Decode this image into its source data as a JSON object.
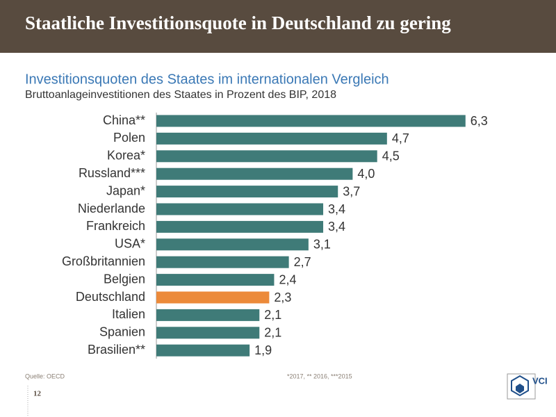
{
  "slide": {
    "title": "Staatliche Investitionsquote in Deutschland zu gering",
    "source": "Quelle: OECD",
    "footnote": "*2017, ** 2016, ***2015",
    "page": "12",
    "logo": "VCI"
  },
  "chart_data": {
    "type": "bar",
    "orientation": "horizontal",
    "title": "Investitionsquoten des Staates im internationalen Vergleich",
    "subtitle": "Bruttoanlageinvestitionen des Staates in Prozent des BIP, 2018",
    "categories": [
      "China**",
      "Polen",
      "Korea*",
      "Russland***",
      "Japan*",
      "Niederlande",
      "Frankreich",
      "USA*",
      "Großbritannien",
      "Belgien",
      "Deutschland",
      "Italien",
      "Spanien",
      "Brasilien**"
    ],
    "values": [
      6.3,
      4.7,
      4.5,
      4.0,
      3.7,
      3.4,
      3.4,
      3.1,
      2.7,
      2.4,
      2.3,
      2.1,
      2.1,
      1.9
    ],
    "value_labels": [
      "6,3",
      "4,7",
      "4,5",
      "4,0",
      "3,7",
      "3,4",
      "3,4",
      "3,1",
      "2,7",
      "2,4",
      "2,3",
      "2,1",
      "2,1",
      "1,9"
    ],
    "colors": [
      "#3f7b78",
      "#3f7b78",
      "#3f7b78",
      "#3f7b78",
      "#3f7b78",
      "#3f7b78",
      "#3f7b78",
      "#3f7b78",
      "#3f7b78",
      "#3f7b78",
      "#ec8a3a",
      "#3f7b78",
      "#3f7b78",
      "#3f7b78"
    ]
  }
}
